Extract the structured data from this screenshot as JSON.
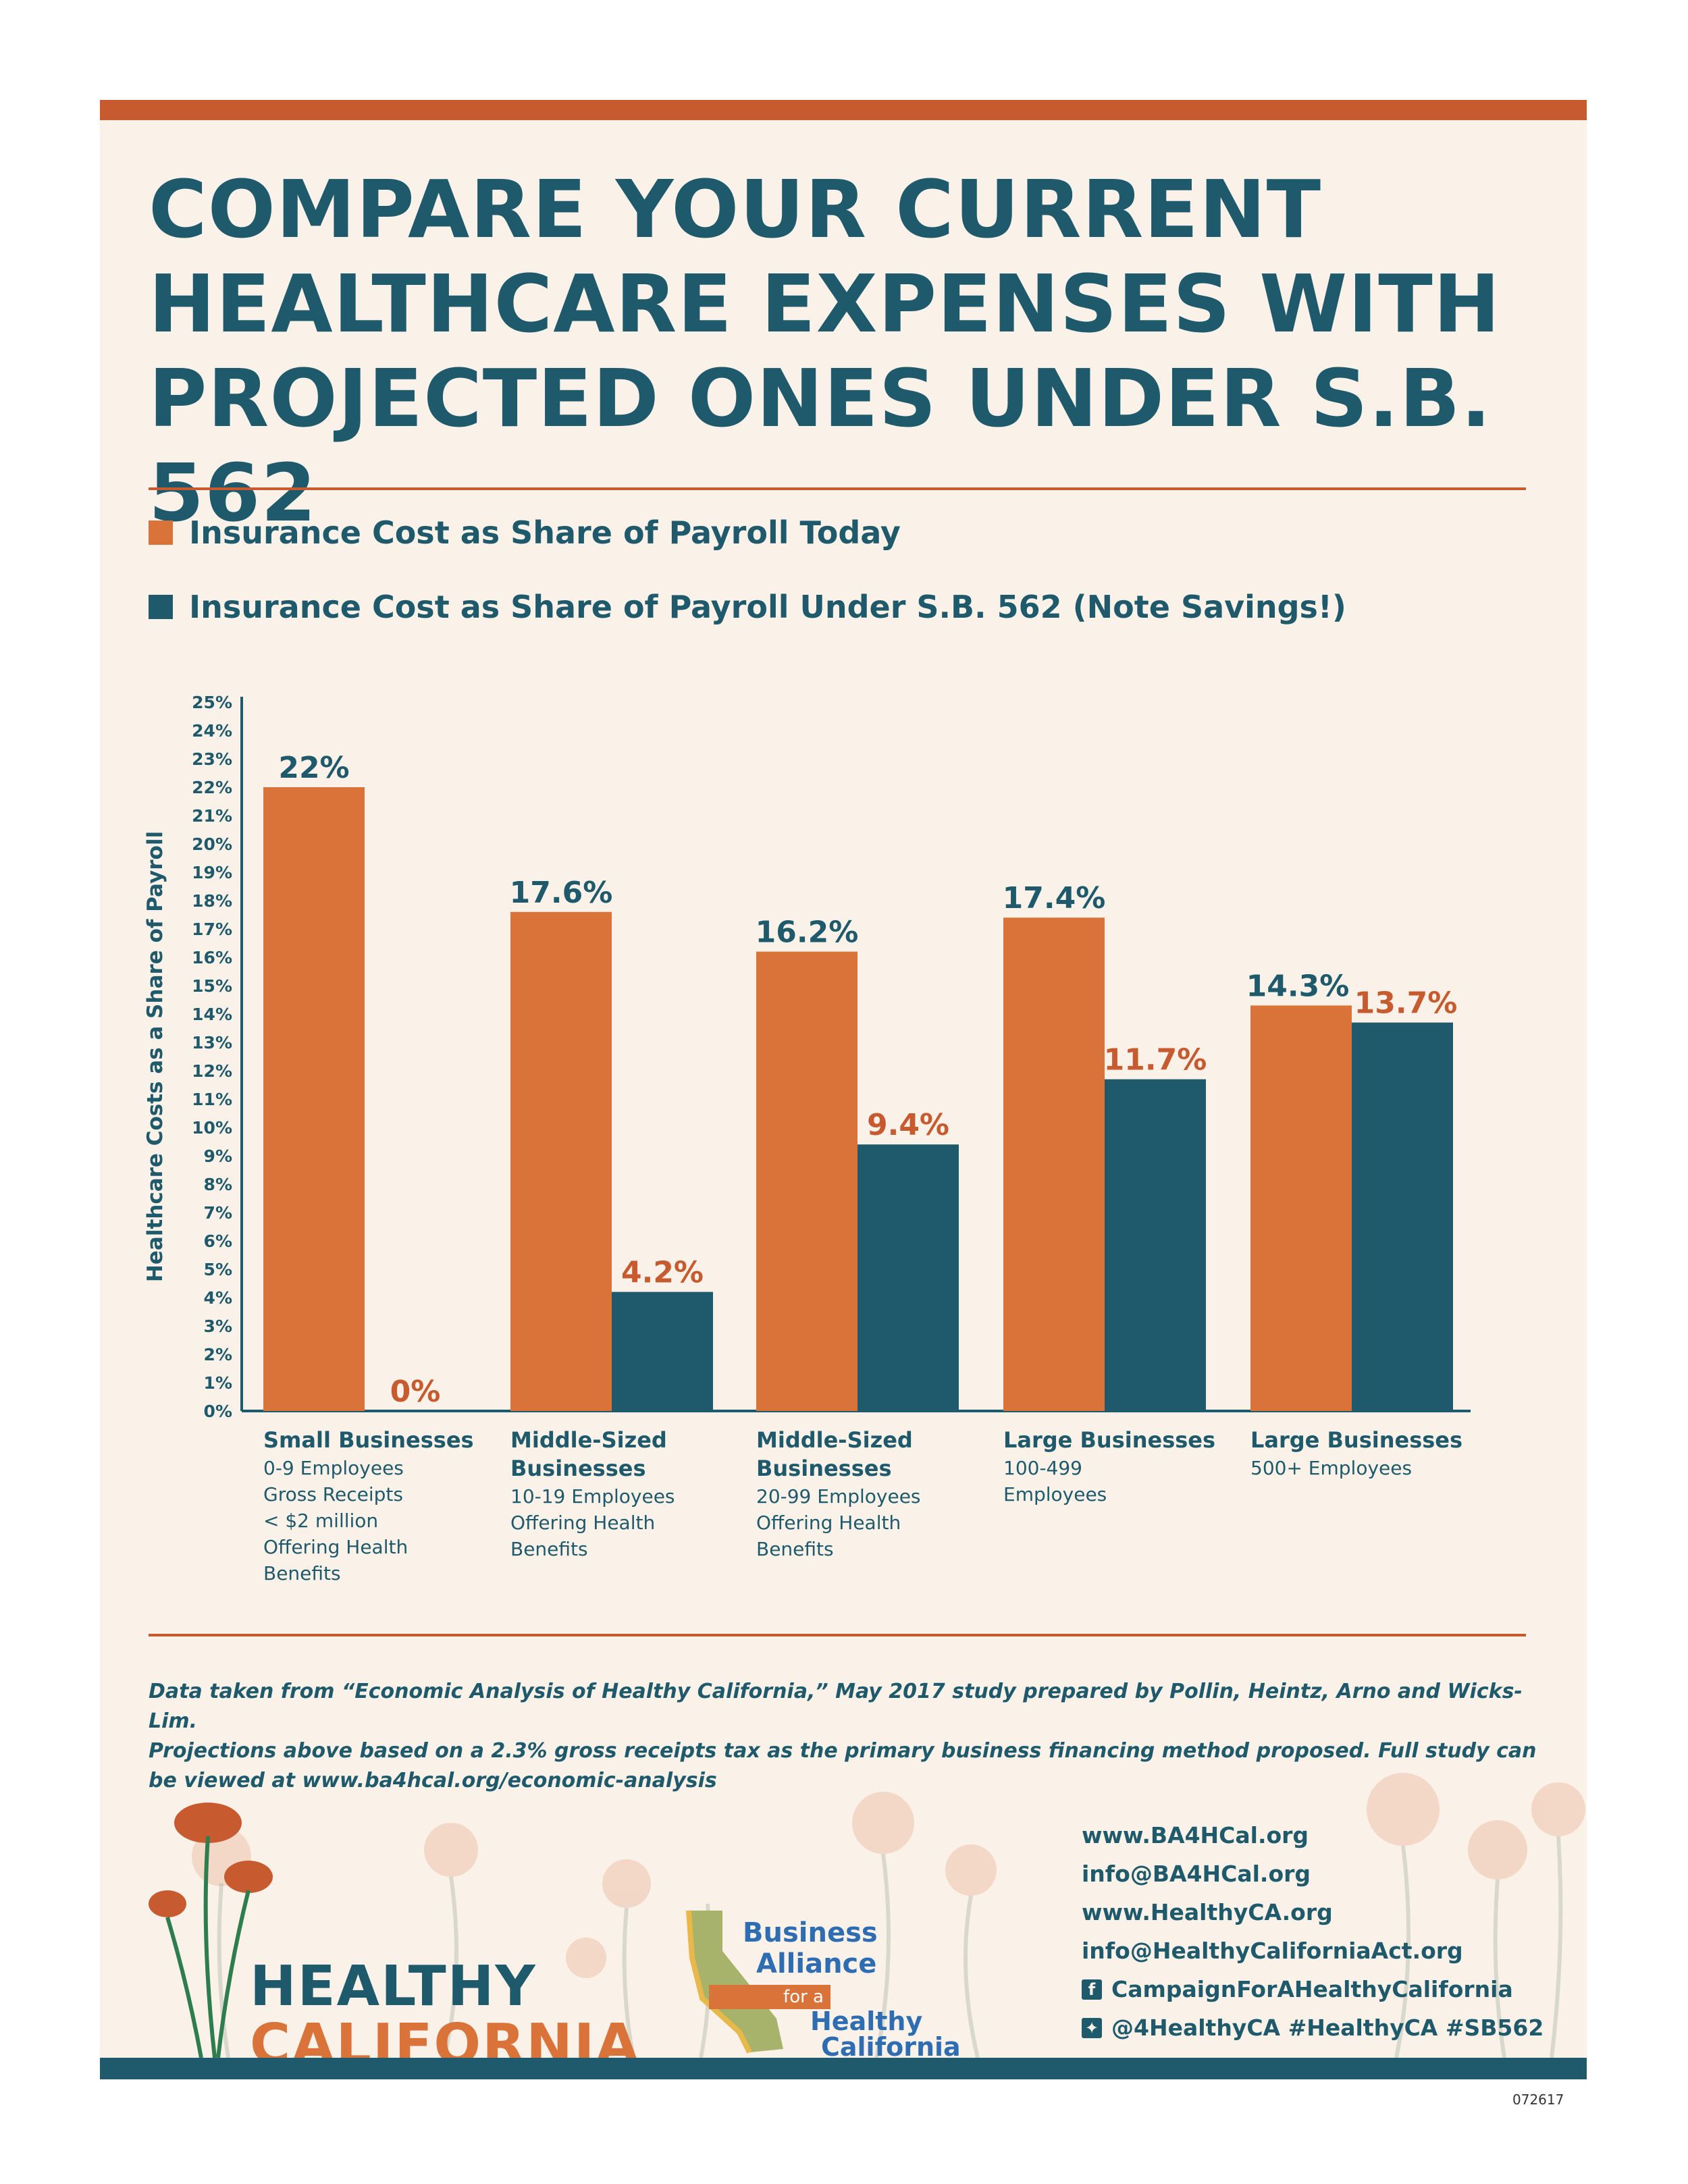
{
  "title": {
    "line1": "COMPARE YOUR CURRENT",
    "line2": "HEALTHCARE EXPENSES WITH",
    "line3": "PROJECTED ONES UNDER S.B. 562"
  },
  "legend": {
    "today": "Insurance Cost as Share of Payroll Today",
    "sb562": "Insurance Cost as Share of Payroll Under S.B. 562 (Note Savings!)"
  },
  "colors": {
    "today": "#d9733a",
    "sb562": "#1e5a6c",
    "accent_rule": "#c75a2f",
    "background": "#faf2e8"
  },
  "chart_data": {
    "type": "bar",
    "ylabel": "Healthcare Costs as a Share of Payroll",
    "ylim": [
      0,
      25
    ],
    "yticks": [
      "0%",
      "1%",
      "2%",
      "3%",
      "4%",
      "5%",
      "6%",
      "7%",
      "8%",
      "9%",
      "10%",
      "11%",
      "12%",
      "13%",
      "14%",
      "15%",
      "16%",
      "17%",
      "18%",
      "19%",
      "20%",
      "21%",
      "22%",
      "23%",
      "24%",
      "25%"
    ],
    "categories": [
      {
        "title": [
          "Small Businesses"
        ],
        "details": [
          "0-9 Employees",
          "Gross Receipts",
          "< $2 million",
          "Offering Health",
          "Benefits"
        ]
      },
      {
        "title": [
          "Middle-Sized",
          "Businesses"
        ],
        "details": [
          "10-19 Employees",
          "Offering Health",
          "Benefits"
        ]
      },
      {
        "title": [
          "Middle-Sized",
          "Businesses"
        ],
        "details": [
          "20-99 Employees",
          "Offering Health",
          "Benefits"
        ]
      },
      {
        "title": [
          "Large Businesses"
        ],
        "details": [
          "100-499",
          "Employees"
        ]
      },
      {
        "title": [
          "Large Businesses"
        ],
        "details": [
          "500+ Employees"
        ]
      }
    ],
    "series": [
      {
        "legend_key": "today",
        "values": [
          22,
          17.6,
          16.2,
          17.4,
          14.3
        ],
        "labels": [
          "22%",
          "17.6%",
          "16.2%",
          "17.4%",
          "14.3%"
        ]
      },
      {
        "legend_key": "sb562",
        "values": [
          0,
          4.2,
          9.4,
          11.7,
          13.7
        ],
        "labels": [
          "0%",
          "4.2%",
          "9.4%",
          "11.7%",
          "13.7%"
        ]
      }
    ],
    "grid": false,
    "legend_position": "top"
  },
  "source": {
    "line1": "Data taken from “Economic Analysis of Healthy California,” May 2017 study prepared by Pollin, Heintz, Arno and Wicks-Lim.",
    "line2": "Projections above based on a 2.3% gross receipts tax as the primary business financing method proposed. Full study can be viewed at www.ba4hcal.org/economic-analysis"
  },
  "contacts": {
    "web1": "www.BA4HCal.org",
    "email1": "info@BA4HCal.org",
    "web2": "www.HealthyCA.org",
    "email2": "info@HealthyCaliforniaAct.org",
    "facebook": "CampaignForAHealthyCalifornia",
    "twitter": "@4HealthyCA #HealthyCA #SB562",
    "facebook_icon": "facebook-icon",
    "twitter_icon": "twitter-icon"
  },
  "logos": {
    "healthy_california": {
      "line1": "HEALTHY",
      "line2": "CALIFORNIA"
    },
    "business_alliance": {
      "line1": "Business",
      "line2": "Alliance",
      "for_a": "for a",
      "line3": "Healthy",
      "line4": "California"
    }
  },
  "doc_code": "072617"
}
